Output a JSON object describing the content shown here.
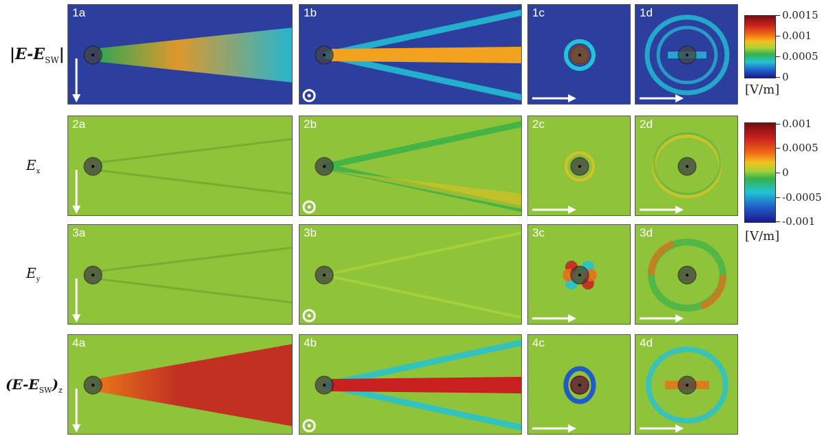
{
  "row_labels": [
    {
      "main": "|E-E",
      "sub": "SW",
      "tail": "|"
    },
    {
      "main": "E",
      "sub": "x",
      "tail": ""
    },
    {
      "main": "E",
      "sub": "y",
      "tail": ""
    },
    {
      "main": "(E-E",
      "sub": "SW",
      "tail": ")",
      "sub2": "z"
    }
  ],
  "panel_labels": [
    [
      "1a",
      "1b",
      "1c",
      "1d"
    ],
    [
      "2a",
      "2b",
      "2c",
      "2d"
    ],
    [
      "3a",
      "3b",
      "3c",
      "3d"
    ],
    [
      "4a",
      "4b",
      "4c",
      "4d"
    ]
  ],
  "colorbars": [
    {
      "ticks": [
        "0.0015",
        "0.001",
        "0.0005",
        "0"
      ],
      "unit": "[V/m]"
    },
    {
      "ticks": [
        "0.001",
        "0.0005",
        "0",
        "-0.0005",
        "-0.001"
      ],
      "unit": "[V/m]"
    }
  ],
  "colors": {
    "magnitude_bg": "#2c3f9e",
    "field_bg": "#8fc33a",
    "colormap": [
      "#1a1a8c",
      "#1f5cc8",
      "#22c3d6",
      "#37b24a",
      "#a8d23a",
      "#f2c21e",
      "#f06a18",
      "#c8201e",
      "#7a0c10"
    ]
  }
}
